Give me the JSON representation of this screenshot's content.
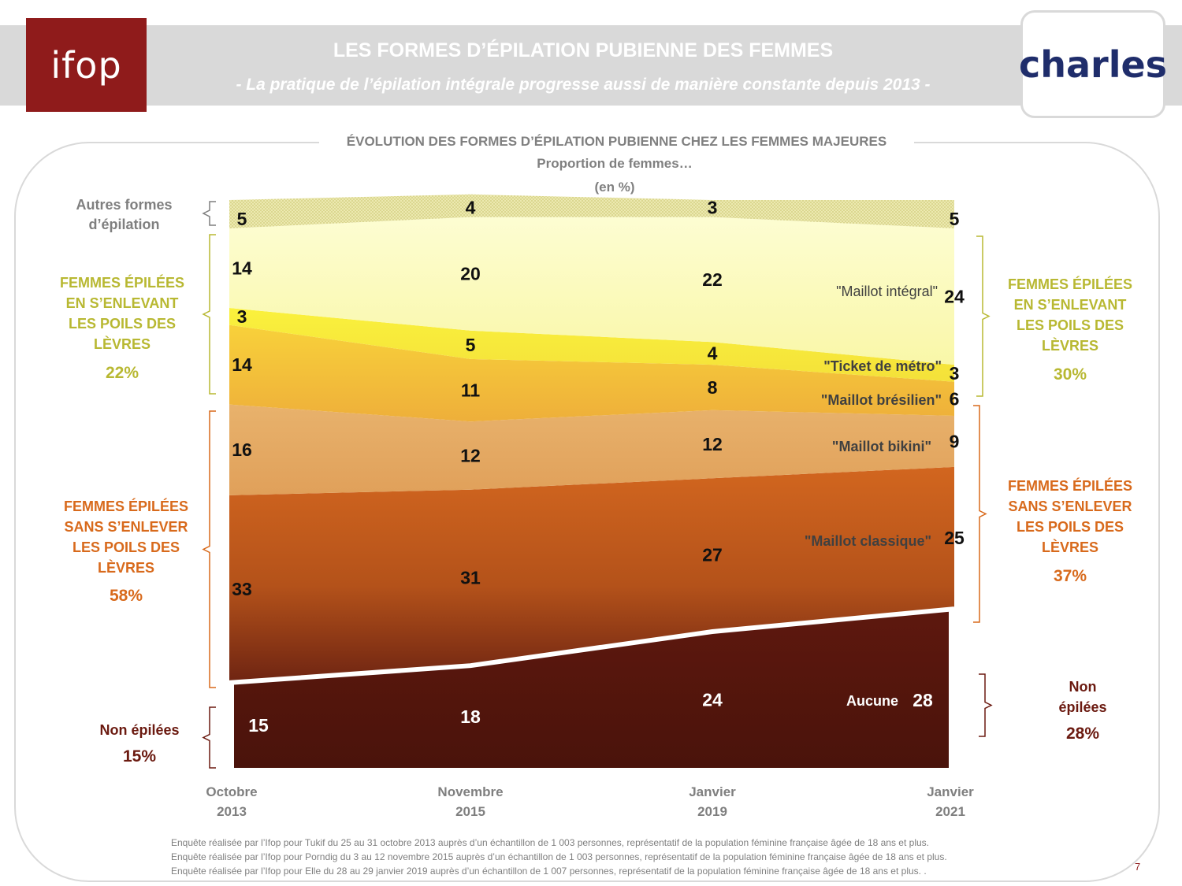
{
  "header": {
    "logo_left": "ifop",
    "logo_right": "charles",
    "title": "LES FORMES D’ÉPILATION PUBIENNE DES FEMMES",
    "subtitle": "- La pratique de l’épilation intégrale progresse aussi de manière constante depuis 2013 -"
  },
  "colors": {
    "header_band": "#d9d9d9",
    "ifop_red": "#8f1b1b",
    "charles_blue": "#1f2d6b",
    "green_label": "#b8b832",
    "orange_label": "#d86a1c",
    "dark_label": "#6b1a10"
  },
  "chart_data": {
    "type": "area",
    "stacked": true,
    "title": "ÉVOLUTION DES FORMES D’ÉPILATION PUBIENNE CHEZ LES FEMMES MAJEURES",
    "subtitle_1": "Proportion de femmes…",
    "subtitle_2": "(en %)",
    "categories": [
      "Octobre 2013",
      "Novembre 2015",
      "Janvier 2019",
      "Janvier 2021"
    ],
    "category_lines": [
      [
        "Octobre",
        "2013"
      ],
      [
        "Novembre",
        "2015"
      ],
      [
        "Janvier",
        "2019"
      ],
      [
        "Janvier",
        "2021"
      ]
    ],
    "ylim": [
      0,
      100
    ],
    "series": [
      {
        "name": "Aucune",
        "values": [
          15,
          18,
          24,
          28
        ],
        "color": "#57150c"
      },
      {
        "name": "\"Maillot classique\"",
        "values": [
          33,
          31,
          27,
          25
        ],
        "color": "#c0591e"
      },
      {
        "name": "\"Maillot bikini\"",
        "values": [
          16,
          12,
          12,
          9
        ],
        "color": "#e5ab62"
      },
      {
        "name": "\"Maillot brésilien\"",
        "values": [
          14,
          11,
          8,
          6
        ],
        "color": "#f5c13a"
      },
      {
        "name": "\"Ticket de métro\"",
        "values": [
          3,
          5,
          4,
          3
        ],
        "color": "#f6ec3c"
      },
      {
        "name": "\"Maillot intégral\"",
        "values": [
          14,
          20,
          22,
          24
        ],
        "color": "#fbfbbe"
      },
      {
        "name": "",
        "values": [
          5,
          4,
          3,
          5
        ],
        "color": "#e6e3a5"
      }
    ]
  },
  "side_labels": {
    "left_other": [
      "Autres formes",
      "d’épilation"
    ],
    "left_top": [
      "FEMMES ÉPILÉES",
      "EN S’ENLEVANT",
      "LES POILS DES",
      "LÈVRES"
    ],
    "left_top_pct": "22%",
    "left_mid": [
      "FEMMES ÉPILÉES",
      "SANS S’ENLEVER",
      "LES POILS DES",
      "LÈVRES"
    ],
    "left_mid_pct": "58%",
    "left_bottom": "Non épilées",
    "left_bottom_pct": "15%",
    "right_top": [
      "FEMMES ÉPILÉES",
      "EN S’ENLEVANT",
      "LES POILS DES",
      "LÈVRES"
    ],
    "right_top_pct": "30%",
    "right_mid": [
      "FEMMES ÉPILÉES",
      "SANS S’ENLEVER",
      "LES POILS DES",
      "LÈVRES"
    ],
    "right_mid_pct": "37%",
    "right_bottom": [
      "Non",
      "épilées"
    ],
    "right_bottom_pct": "28%"
  },
  "notes": [
    "Enquête réalisée par l’Ifop pour Tukif du 25 au 31 octobre 2013 auprès d’un échantillon de 1 003 personnes, représentatif de la population féminine française âgée de 18 ans et plus.",
    "Enquête réalisée par l’Ifop pour Porndig du 3 au 12 novembre 2015 auprès d’un échantillon de 1 003 personnes, représentatif de la population féminine française âgée de 18 ans et plus.",
    "Enquête réalisée par l’Ifop pour Elle du 28 au 29 janvier 2019 auprès d’un échantillon de 1 007 personnes, représentatif de la population féminine française âgée de 18 ans et plus. ."
  ],
  "page_number": "7"
}
